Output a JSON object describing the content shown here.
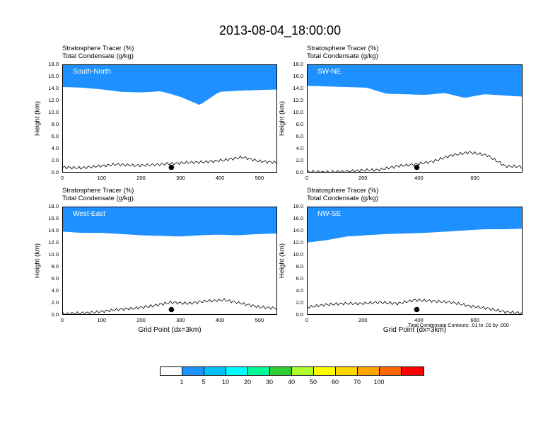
{
  "title": "2013-08-04_18:00:00",
  "chart_data": [
    {
      "type": "heatmap",
      "panel": "South-North",
      "title_lines": [
        "Stratosphere Tracer   (%)",
        "Total Condensate   (g/kg)"
      ],
      "ylabel": "Height (km)",
      "xlabel": "",
      "xlim": [
        0,
        545
      ],
      "ylim": [
        0,
        18
      ],
      "xticks": [
        "0",
        "100",
        "200",
        "300",
        "400",
        "500"
      ],
      "yticks": [
        "0.0",
        "2.0",
        "4.0",
        "6.0",
        "8.0",
        "10.0",
        "12.0",
        "14.0",
        "16.0",
        "18.0"
      ],
      "tracer_base_km": [
        14.0,
        13.9,
        13.6,
        13.2,
        13.1,
        13.3,
        12.4,
        11.0,
        13.2,
        13.4,
        13.5,
        13.6
      ],
      "terrain_km": [
        1.0,
        0.9,
        1.2,
        1.5,
        1.3,
        1.4,
        1.6,
        1.8,
        1.9,
        2.2,
        2.7,
        2.0,
        1.8
      ],
      "point_marker": {
        "x": 275,
        "y": 1.0
      }
    },
    {
      "type": "heatmap",
      "panel": "SW-NE",
      "title_lines": [
        "Stratosphere Tracer   (%)",
        "Total Condensate   (g/kg)"
      ],
      "ylabel": "Height (km)",
      "xlabel": "",
      "xlim": [
        0,
        770
      ],
      "ylim": [
        0,
        18
      ],
      "xticks": [
        "0",
        "200",
        "400",
        "600"
      ],
      "yticks": [
        "0.0",
        "2.0",
        "4.0",
        "6.0",
        "8.0",
        "10.0",
        "12.0",
        "14.0",
        "16.0",
        "18.0"
      ],
      "tracer_base_km": [
        14.2,
        14.1,
        14.0,
        13.9,
        12.9,
        12.8,
        12.7,
        13.0,
        12.2,
        12.8,
        12.6,
        12.4
      ],
      "terrain_km": [
        0.3,
        0.2,
        0.3,
        0.5,
        0.6,
        1.2,
        1.5,
        2.0,
        3.0,
        3.5,
        3.0,
        1.2,
        1.1
      ],
      "point_marker": {
        "x": 390,
        "y": 1.0
      }
    },
    {
      "type": "heatmap",
      "panel": "West-East",
      "title_lines": [
        "Stratosphere Tracer   (%)",
        "Total Condensate   (g/kg)"
      ],
      "ylabel": "Height (km)",
      "xlabel": "Grid Point (dx=3km)",
      "xlim": [
        0,
        545
      ],
      "ylim": [
        0,
        18
      ],
      "xticks": [
        "0",
        "100",
        "200",
        "300",
        "400",
        "500"
      ],
      "yticks": [
        "0.0",
        "2.0",
        "4.0",
        "6.0",
        "8.0",
        "10.0",
        "12.0",
        "14.0",
        "16.0",
        "18.0"
      ],
      "tracer_base_km": [
        13.6,
        13.4,
        13.4,
        13.2,
        13.0,
        12.9,
        12.8,
        13.0,
        13.1,
        13.0,
        13.2,
        13.3
      ],
      "terrain_km": [
        0.3,
        0.4,
        0.6,
        1.0,
        1.2,
        1.6,
        2.2,
        2.0,
        2.4,
        2.6,
        2.0,
        1.4,
        1.2
      ],
      "point_marker": {
        "x": 275,
        "y": 1.0
      }
    },
    {
      "type": "heatmap",
      "panel": "NW-SE",
      "title_lines": [
        "Stratosphere Tracer   (%)",
        "Total Condensate   (g/kg)"
      ],
      "ylabel": "Height (km)",
      "xlabel": "Grid Point (dx=3km)",
      "xlim": [
        0,
        770
      ],
      "ylim": [
        0,
        18
      ],
      "xticks": [
        "0",
        "200",
        "400",
        "600"
      ],
      "yticks": [
        "0.0",
        "2.0",
        "4.0",
        "6.0",
        "8.0",
        "10.0",
        "12.0",
        "14.0",
        "16.0",
        "18.0"
      ],
      "tracer_base_km": [
        11.8,
        12.2,
        12.8,
        13.0,
        13.2,
        13.3,
        13.4,
        13.6,
        13.8,
        14.0,
        14.0,
        14.1
      ],
      "terrain_km": [
        1.4,
        1.8,
        2.0,
        2.0,
        2.2,
        2.0,
        2.6,
        2.4,
        2.2,
        1.6,
        1.2,
        0.6,
        0.4
      ],
      "point_marker": {
        "x": 390,
        "y": 1.0
      },
      "note": "Total Condensate Contours: .01 to .01 by .000"
    }
  ],
  "colorbar": {
    "labels": [
      "1",
      "5",
      "10",
      "20",
      "30",
      "40",
      "50",
      "60",
      "70",
      "100"
    ],
    "colors": [
      "#ffffff",
      "#1e90ff",
      "#00bfff",
      "#00ffff",
      "#00fa9a",
      "#32cd32",
      "#adff2f",
      "#ffff00",
      "#ffd700",
      "#ffa500",
      "#ff6600",
      "#ff0000"
    ]
  }
}
